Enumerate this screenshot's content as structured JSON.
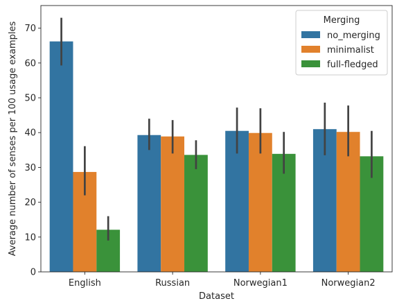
{
  "chart_data": {
    "type": "bar",
    "categories": [
      "English",
      "Russian",
      "Norwegian1",
      "Norwegian2"
    ],
    "xlabel": "Dataset",
    "ylabel": "Average number of senses per 100 usage examples",
    "ylim": [
      0,
      76.5
    ],
    "yticks": [
      0,
      10,
      20,
      30,
      40,
      50,
      60,
      70
    ],
    "grid": false,
    "legend": {
      "title": "Merging",
      "placement": "top-right"
    },
    "series": [
      {
        "name": "no_merging",
        "color": "#3274a1",
        "values": [
          66.2,
          39.3,
          40.5,
          41.0
        ],
        "ci": [
          [
            59.3,
            73.0
          ],
          [
            35.0,
            44.0
          ],
          [
            34.0,
            47.2
          ],
          [
            33.5,
            48.6
          ]
        ]
      },
      {
        "name": "minimalist",
        "color": "#e1812c",
        "values": [
          28.7,
          38.9,
          39.9,
          40.2
        ],
        "ci": [
          [
            22.0,
            36.1
          ],
          [
            34.0,
            43.6
          ],
          [
            34.0,
            47.0
          ],
          [
            33.2,
            47.8
          ]
        ]
      },
      {
        "name": "full-fledged",
        "color": "#3a923a",
        "values": [
          12.1,
          33.6,
          33.9,
          33.2
        ],
        "ci": [
          [
            9.0,
            16.0
          ],
          [
            29.5,
            37.8
          ],
          [
            28.2,
            40.2
          ],
          [
            27.0,
            40.5
          ]
        ]
      }
    ]
  }
}
